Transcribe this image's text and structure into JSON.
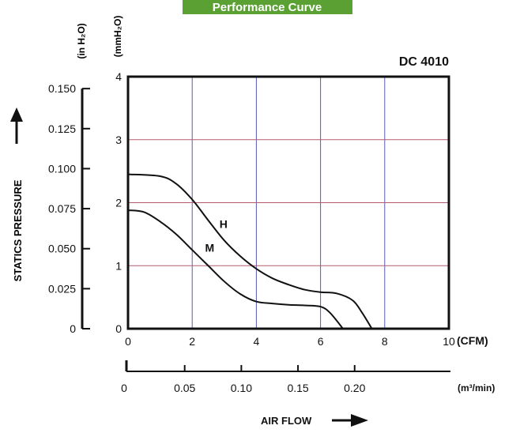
{
  "banner": {
    "title": "Performance Curve",
    "color": "#5aa032"
  },
  "chart_data": {
    "type": "line",
    "title": "DC 4010",
    "xlabel": "AIR FLOW",
    "ylabel": "STATICS PRESSURE",
    "x_unit": "(CFM)",
    "x2_unit": "(m³/min)",
    "y_unit_left": "(in H₂O)",
    "y_unit_right": "(mmH₂O)",
    "xlim": [
      0,
      10
    ],
    "ylim": [
      0,
      4
    ],
    "x_ticks": [
      "0",
      "2",
      "4",
      "6",
      "8",
      "10"
    ],
    "y_ticks": [
      "0",
      "1",
      "2",
      "3",
      "4"
    ],
    "x2_ticks": [
      {
        "value": 0,
        "label": "0"
      },
      {
        "value": 0.05,
        "label": "0.05"
      },
      {
        "value": 0.1,
        "label": "0.10"
      },
      {
        "value": 0.15,
        "label": "0.15"
      },
      {
        "value": 0.2,
        "label": "0.20"
      }
    ],
    "y2_ticks": [
      {
        "value": 0,
        "label": "0"
      },
      {
        "value": 0.025,
        "label": "0.025"
      },
      {
        "value": 0.05,
        "label": "0.050"
      },
      {
        "value": 0.075,
        "label": "0.075"
      },
      {
        "value": 0.1,
        "label": "0.100"
      },
      {
        "value": 0.125,
        "label": "0.125"
      },
      {
        "value": 0.15,
        "label": "0.150"
      }
    ],
    "grid": true,
    "grid_vertical_color": "#5a5ab4",
    "grid_horizontal_color": "#b45a6e",
    "series": [
      {
        "name": "H",
        "x": [
          0,
          1,
          1.5,
          2,
          2.5,
          3,
          3.5,
          4,
          4.5,
          5,
          5.5,
          6,
          6.5,
          7,
          7.3,
          7.6
        ],
        "y": [
          2.45,
          2.42,
          2.3,
          2.05,
          1.72,
          1.4,
          1.15,
          0.95,
          0.8,
          0.7,
          0.62,
          0.58,
          0.56,
          0.45,
          0.25,
          0
        ]
      },
      {
        "name": "M",
        "x": [
          0,
          0.5,
          1,
          1.5,
          2,
          2.5,
          3,
          3.5,
          4,
          4.5,
          5,
          5.5,
          6,
          6.3,
          6.7
        ],
        "y": [
          1.88,
          1.85,
          1.7,
          1.5,
          1.25,
          1.0,
          0.75,
          0.55,
          0.43,
          0.4,
          0.38,
          0.37,
          0.35,
          0.25,
          0
        ]
      }
    ]
  }
}
